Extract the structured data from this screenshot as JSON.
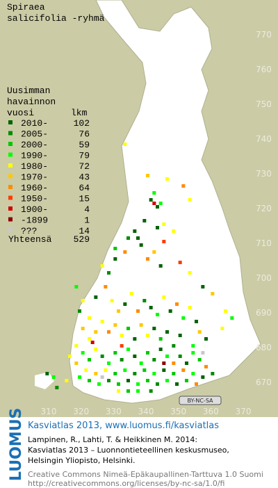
{
  "title": [
    "Spiraea",
    "salicifolia -ryhmä"
  ],
  "legend": {
    "header": [
      "Uusimman",
      "havainnon",
      "vuosi"
    ],
    "count_header": "lkm",
    "rows": [
      {
        "label": "2010-",
        "count": 102,
        "color": "#006400"
      },
      {
        "label": "2005-",
        "count": 76,
        "color": "#008c00"
      },
      {
        "label": "2000-",
        "count": 59,
        "color": "#00c800"
      },
      {
        "label": "1990-",
        "count": 79,
        "color": "#00ff00"
      },
      {
        "label": "1980-",
        "count": 72,
        "color": "#ffff00"
      },
      {
        "label": "1970-",
        "count": 43,
        "color": "#ffc800"
      },
      {
        "label": "1960-",
        "count": 64,
        "color": "#ff8c00"
      },
      {
        "label": "1950-",
        "count": 15,
        "color": "#ff3c00"
      },
      {
        "label": "1900-",
        "count": 4,
        "color": "#d20000"
      },
      {
        "label": "-1899",
        "count": 1,
        "color": "#8c0000"
      },
      {
        "label": "???",
        "count": 14,
        "color": "#c8c8c8"
      }
    ],
    "total_label": "Yhteensä",
    "total": 529
  },
  "axes": {
    "y_labels": [
      770,
      760,
      750,
      740,
      730,
      720,
      710,
      700,
      690,
      680,
      670
    ],
    "x_labels": [
      310,
      320,
      330,
      340,
      350,
      360,
      370
    ]
  },
  "badge": "BY-NC-SA",
  "cells": [
    [
      333,
      738,
      4
    ],
    [
      340,
      729,
      5
    ],
    [
      346,
      728,
      4
    ],
    [
      351,
      726,
      6
    ],
    [
      342,
      724,
      3
    ],
    [
      341,
      722,
      0
    ],
    [
      342,
      721,
      8
    ],
    [
      343,
      720,
      0
    ],
    [
      344,
      721,
      3
    ],
    [
      353,
      722,
      4
    ],
    [
      339,
      716,
      0
    ],
    [
      343,
      714,
      0
    ],
    [
      345,
      715,
      4
    ],
    [
      336,
      713,
      0
    ],
    [
      337,
      711,
      0
    ],
    [
      338,
      709,
      0
    ],
    [
      345,
      710,
      7
    ],
    [
      348,
      713,
      4
    ],
    [
      342,
      707,
      5
    ],
    [
      334,
      711,
      1
    ],
    [
      330,
      708,
      2
    ],
    [
      333,
      707,
      6
    ],
    [
      326,
      703,
      4
    ],
    [
      328,
      701,
      1
    ],
    [
      330,
      705,
      0
    ],
    [
      340,
      705,
      6
    ],
    [
      344,
      703,
      0
    ],
    [
      350,
      704,
      7
    ],
    [
      353,
      701,
      4
    ],
    [
      357,
      697,
      0
    ],
    [
      360,
      695,
      5
    ],
    [
      364,
      690,
      4
    ],
    [
      366,
      688,
      3
    ],
    [
      363,
      685,
      4
    ],
    [
      318,
      697,
      3
    ],
    [
      320,
      693,
      4
    ],
    [
      319,
      690,
      1
    ],
    [
      322,
      688,
      4
    ],
    [
      324,
      694,
      0
    ],
    [
      327,
      697,
      6
    ],
    [
      329,
      693,
      4
    ],
    [
      331,
      690,
      5
    ],
    [
      333,
      692,
      0
    ],
    [
      335,
      695,
      4
    ],
    [
      337,
      690,
      6
    ],
    [
      339,
      693,
      1
    ],
    [
      341,
      691,
      0
    ],
    [
      343,
      689,
      3
    ],
    [
      345,
      694,
      4
    ],
    [
      347,
      690,
      0
    ],
    [
      349,
      692,
      6
    ],
    [
      351,
      688,
      3
    ],
    [
      353,
      691,
      4
    ],
    [
      355,
      687,
      0
    ],
    [
      356,
      684,
      5
    ],
    [
      358,
      682,
      0
    ],
    [
      354,
      680,
      3
    ],
    [
      350,
      683,
      0
    ],
    [
      348,
      680,
      1
    ],
    [
      346,
      684,
      0
    ],
    [
      344,
      682,
      2
    ],
    [
      342,
      685,
      0
    ],
    [
      340,
      683,
      4
    ],
    [
      338,
      686,
      5
    ],
    [
      336,
      682,
      0
    ],
    [
      334,
      685,
      2
    ],
    [
      332,
      683,
      4
    ],
    [
      330,
      686,
      5
    ],
    [
      328,
      684,
      6
    ],
    [
      326,
      687,
      4
    ],
    [
      324,
      684,
      5
    ],
    [
      322,
      682,
      4
    ],
    [
      320,
      685,
      5
    ],
    [
      318,
      680,
      4
    ],
    [
      316,
      677,
      4
    ],
    [
      318,
      675,
      5
    ],
    [
      320,
      678,
      3
    ],
    [
      322,
      676,
      2
    ],
    [
      324,
      679,
      4
    ],
    [
      326,
      677,
      1
    ],
    [
      328,
      675,
      3
    ],
    [
      330,
      678,
      2
    ],
    [
      332,
      676,
      1
    ],
    [
      334,
      679,
      3
    ],
    [
      336,
      677,
      0
    ],
    [
      338,
      675,
      3
    ],
    [
      340,
      678,
      2
    ],
    [
      342,
      676,
      1
    ],
    [
      344,
      679,
      0
    ],
    [
      346,
      677,
      3
    ],
    [
      348,
      675,
      6
    ],
    [
      350,
      677,
      1
    ],
    [
      352,
      675,
      0
    ],
    [
      354,
      678,
      3
    ],
    [
      356,
      676,
      2
    ],
    [
      358,
      674,
      6
    ],
    [
      360,
      672,
      1
    ],
    [
      357,
      671,
      0
    ],
    [
      354,
      672,
      3
    ],
    [
      351,
      673,
      6
    ],
    [
      348,
      672,
      2
    ],
    [
      345,
      673,
      0
    ],
    [
      342,
      672,
      3
    ],
    [
      339,
      673,
      2
    ],
    [
      336,
      672,
      1
    ],
    [
      333,
      673,
      3
    ],
    [
      330,
      672,
      2
    ],
    [
      327,
      673,
      4
    ],
    [
      324,
      672,
      5
    ],
    [
      321,
      673,
      4
    ],
    [
      319,
      671,
      3
    ],
    [
      322,
      670,
      2
    ],
    [
      325,
      669,
      3
    ],
    [
      328,
      670,
      1
    ],
    [
      331,
      669,
      2
    ],
    [
      334,
      670,
      0
    ],
    [
      337,
      669,
      3
    ],
    [
      340,
      670,
      2
    ],
    [
      343,
      669,
      1
    ],
    [
      346,
      670,
      3
    ],
    [
      349,
      669,
      0
    ],
    [
      352,
      670,
      2
    ],
    [
      355,
      669,
      6
    ],
    [
      331,
      667,
      4
    ],
    [
      334,
      667,
      2
    ],
    [
      337,
      667,
      3
    ],
    [
      341,
      667,
      1
    ],
    [
      326,
      671,
      10
    ],
    [
      345,
      675,
      9
    ],
    [
      332,
      680,
      7
    ],
    [
      315,
      670,
      4
    ],
    [
      312,
      668,
      1
    ],
    [
      311,
      671,
      3
    ],
    [
      309,
      672,
      0
    ],
    [
      323,
      681,
      8
    ],
    [
      357,
      678,
      10
    ]
  ],
  "footer": {
    "logo": "LUOMUS",
    "headline": "Kasviatlas 2013, www.luomus.fi/kasviatlas",
    "citation": [
      "Lampinen, R., Lahti, T. & Heikkinen M. 2014:",
      "Kasviatlas 2013 – Luonnontieteellinen keskusmuseo,",
      "Helsingin Yliopisto, Helsinki."
    ],
    "license": [
      "Creative Commons Nimeä-Epäkaupallinen-Tarttuva 1.0 Suomi",
      "http://creativecommons.org/licenses/by-nc-sa/1.0/fi"
    ]
  }
}
